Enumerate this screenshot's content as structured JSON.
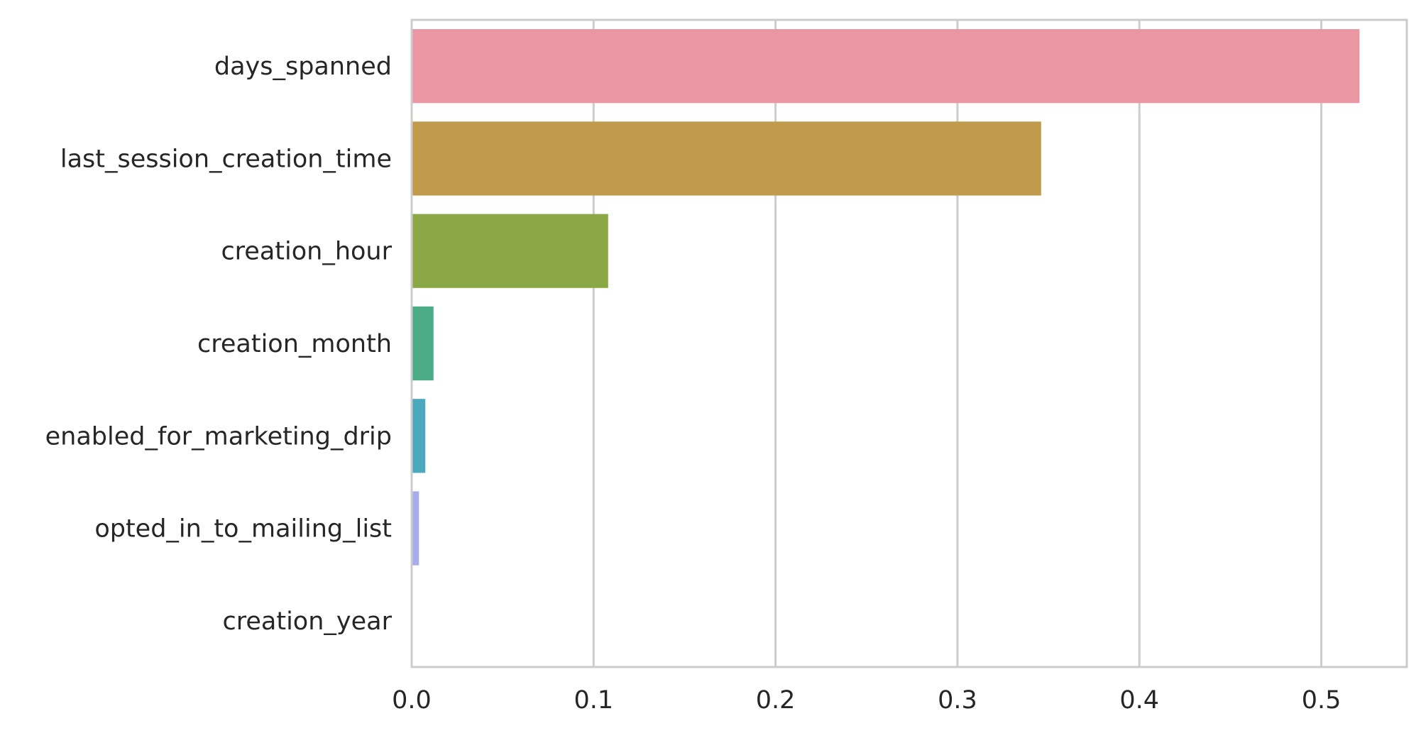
{
  "chart_data": {
    "type": "bar",
    "orientation": "horizontal",
    "categories": [
      "days_spanned",
      "last_session_creation_time",
      "creation_hour",
      "creation_month",
      "enabled_for_marketing_drip",
      "opted_in_to_mailing_list",
      "creation_year"
    ],
    "values": [
      0.521,
      0.346,
      0.108,
      0.012,
      0.0075,
      0.004,
      0.0
    ],
    "colors": [
      "#ea96a3",
      "#c19a4c",
      "#8ba847",
      "#4aab86",
      "#4aa9bc",
      "#a7acec",
      "#f397d6"
    ],
    "xlim": [
      0.0,
      0.547
    ],
    "xticks": [
      0.0,
      0.1,
      0.2,
      0.3,
      0.4,
      0.5
    ],
    "xtick_labels": [
      "0.0",
      "0.1",
      "0.2",
      "0.3",
      "0.4",
      "0.5"
    ],
    "grid": "x",
    "title": "",
    "xlabel": "",
    "ylabel": ""
  }
}
